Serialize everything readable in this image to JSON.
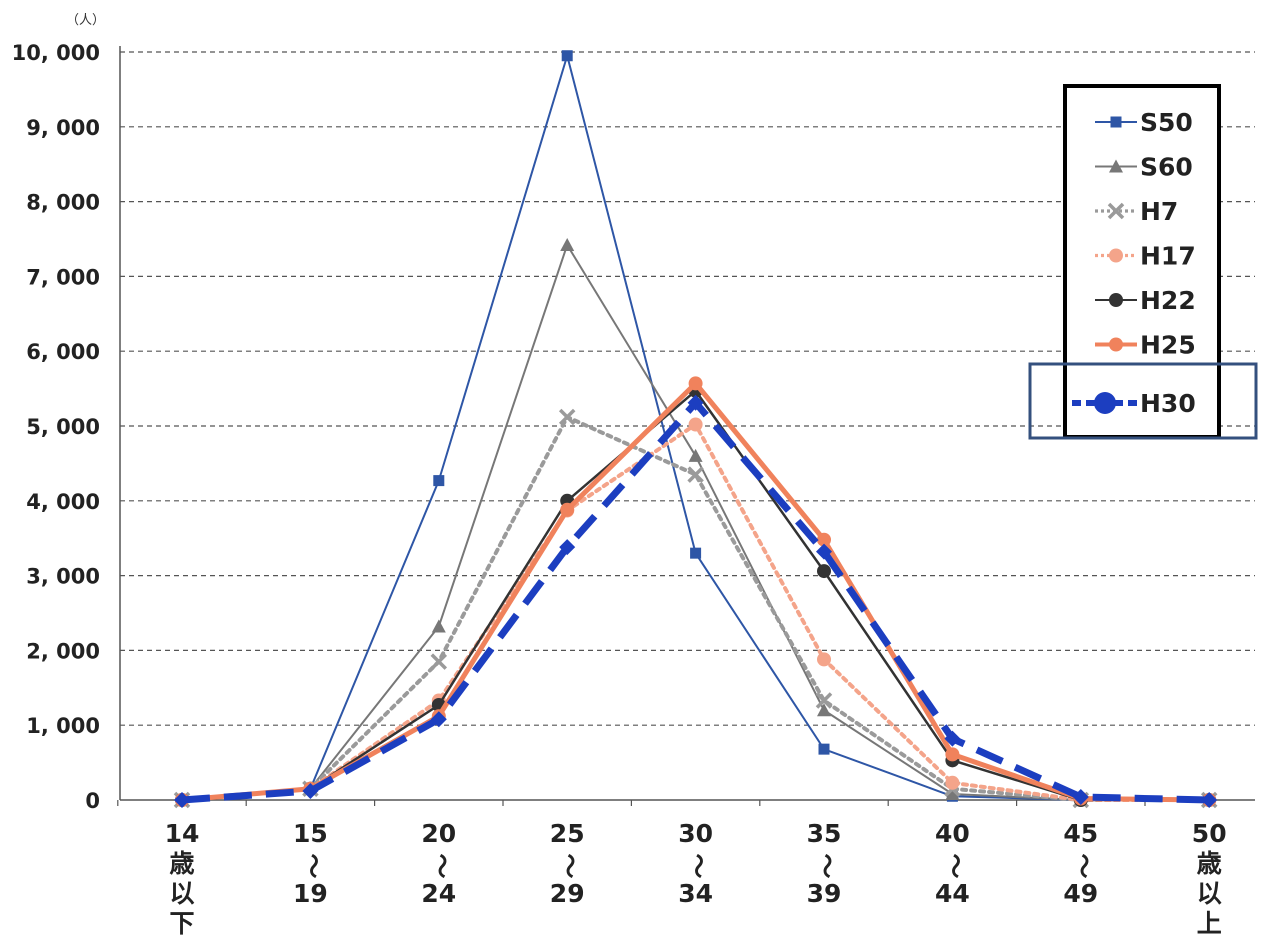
{
  "chart_data": {
    "type": "line",
    "unit": "（人）",
    "ylim": [
      0,
      10000
    ],
    "y_ticks": [
      "0",
      "1, 000",
      "2, 000",
      "3, 000",
      "4, 000",
      "5, 000",
      "6, 000",
      "7, 000",
      "8, 000",
      "9, 000",
      "10, 000"
    ],
    "y_tick_values": [
      0,
      1000,
      2000,
      3000,
      4000,
      5000,
      6000,
      7000,
      8000,
      9000,
      10000
    ],
    "grid": "horizontal dashed",
    "legend_position": "top-right",
    "categories": [
      [
        "14",
        "歳",
        "以",
        "下"
      ],
      [
        "15",
        "〜",
        "19"
      ],
      [
        "20",
        "〜",
        "24"
      ],
      [
        "25",
        "〜",
        "29"
      ],
      [
        "30",
        "〜",
        "34"
      ],
      [
        "35",
        "〜",
        "39"
      ],
      [
        "40",
        "〜",
        "44"
      ],
      [
        "45",
        "〜",
        "49"
      ],
      [
        "50",
        "歳",
        "以",
        "上"
      ]
    ],
    "series": [
      {
        "name": "S50",
        "color": "#2e56a6",
        "marker": "square",
        "line": "solid",
        "width": 2,
        "values": [
          0,
          150,
          4270,
          9950,
          3300,
          680,
          50,
          0,
          0
        ]
      },
      {
        "name": "S60",
        "color": "#777777",
        "marker": "triangle",
        "line": "solid",
        "width": 2,
        "values": [
          0,
          150,
          2320,
          7420,
          4600,
          1200,
          80,
          0,
          0
        ]
      },
      {
        "name": "H7",
        "color": "#9a9a9a",
        "marker": "x",
        "line": "dotted",
        "width": 4,
        "values": [
          0,
          150,
          1850,
          5120,
          4350,
          1330,
          150,
          0,
          0
        ]
      },
      {
        "name": "H17",
        "color": "#f4a48a",
        "marker": "circle",
        "line": "dotted",
        "width": 4,
        "values": [
          0,
          150,
          1330,
          3870,
          5020,
          1880,
          230,
          0,
          0
        ]
      },
      {
        "name": "H22",
        "color": "#333333",
        "marker": "circle",
        "line": "solid",
        "width": 2.5,
        "values": [
          0,
          150,
          1270,
          4000,
          5470,
          3060,
          530,
          0,
          0
        ]
      },
      {
        "name": "H25",
        "color": "#f0825c",
        "marker": "circle",
        "line": "solid",
        "width": 5,
        "values": [
          0,
          150,
          1120,
          3880,
          5570,
          3480,
          610,
          20,
          0
        ]
      },
      {
        "name": "H30",
        "color": "#1c3ec0",
        "marker": "diamond",
        "line": "dashed",
        "width": 7,
        "values": [
          0,
          120,
          1080,
          3380,
          5310,
          3320,
          820,
          40,
          0
        ]
      }
    ]
  }
}
